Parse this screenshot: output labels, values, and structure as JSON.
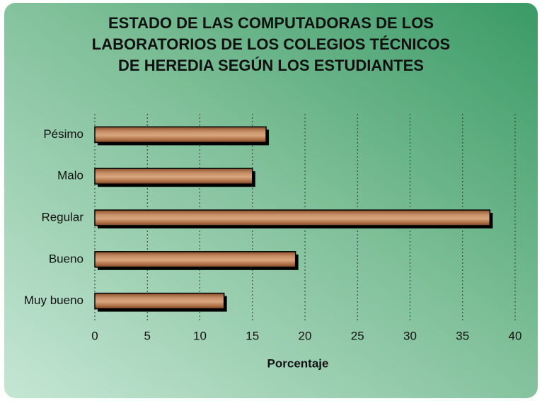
{
  "chart_data": {
    "type": "bar",
    "orientation": "horizontal",
    "title": "ESTADO DE LAS COMPUTADORAS DE LOS\nLABORATORIOS DE LOS COLEGIOS TÉCNICOS\nDE HEREDIA SEGÚN LOS ESTUDIANTES",
    "categories": [
      "Pésimo",
      "Malo",
      "Regular",
      "Bueno",
      "Muy bueno"
    ],
    "values": [
      16.3,
      15,
      37.6,
      19.1,
      12.3
    ],
    "color": "#a8683e",
    "xlabel": "Porcentaje",
    "xlim": [
      0,
      40
    ],
    "xticks": [
      0,
      5,
      10,
      15,
      20,
      25,
      30,
      35,
      40
    ],
    "grid": true
  }
}
